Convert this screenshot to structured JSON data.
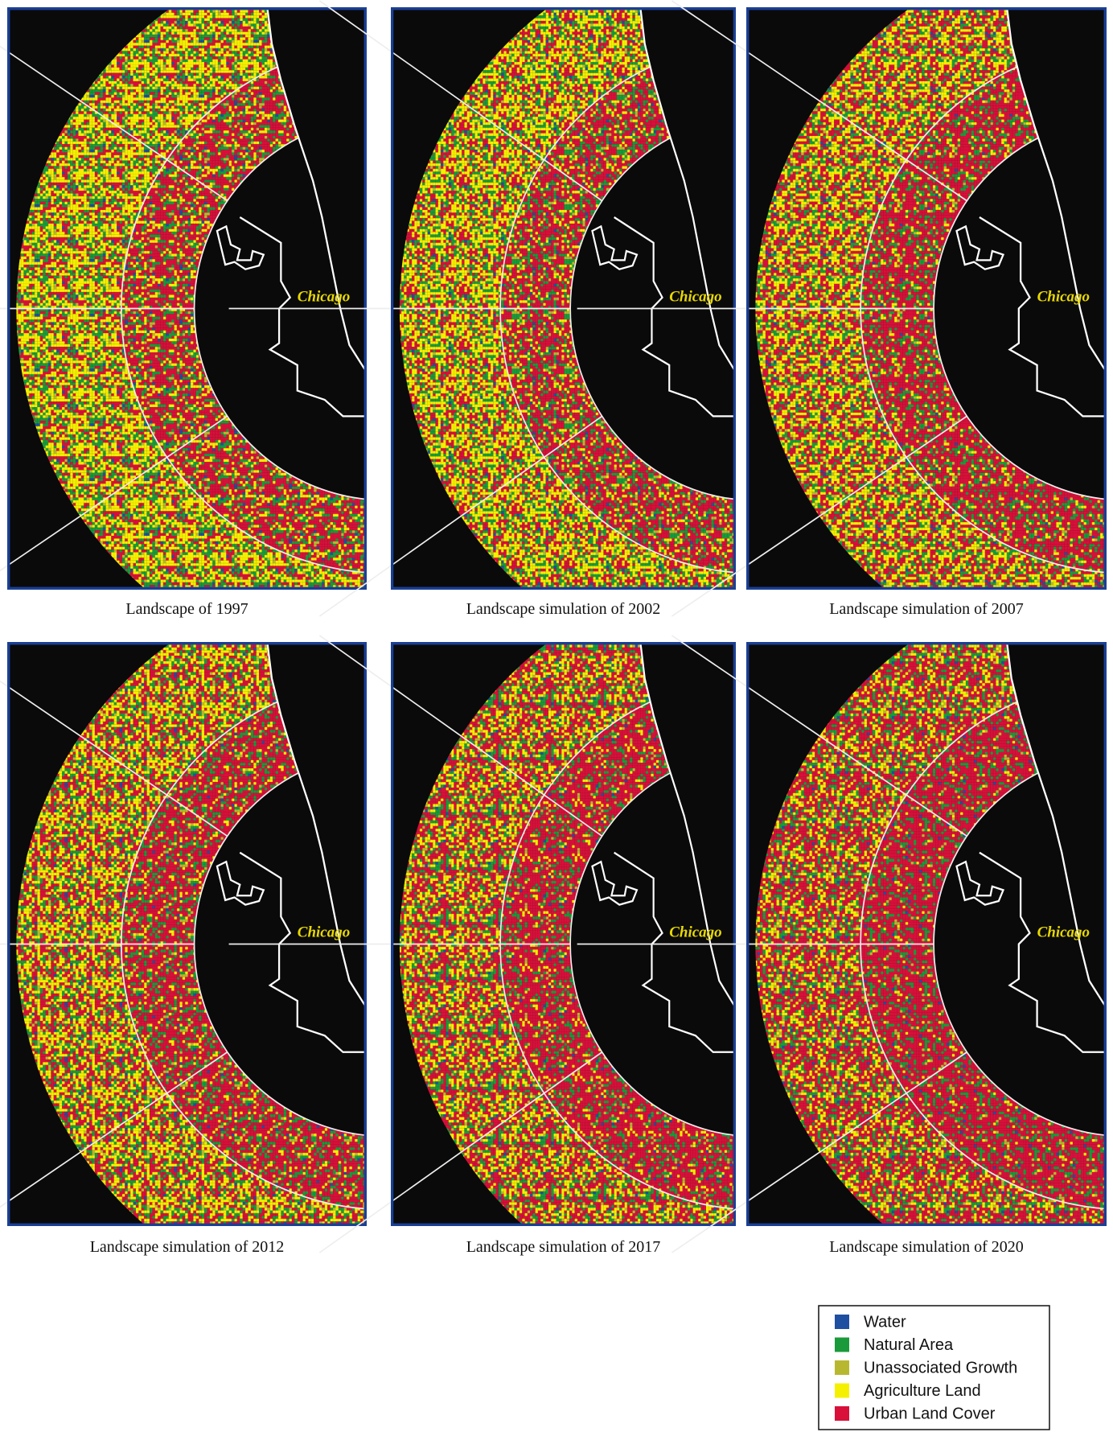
{
  "panels": [
    {
      "caption": "Landscape of 1997",
      "city_label": "Chicago"
    },
    {
      "caption": "Landscape simulation of 2002",
      "city_label": "Chicago"
    },
    {
      "caption": "Landscape simulation of 2007",
      "city_label": "Chicago"
    },
    {
      "caption": "Landscape simulation of 2012",
      "city_label": "Chicago"
    },
    {
      "caption": "Landscape simulation of 2017",
      "city_label": "Chicago"
    },
    {
      "caption": "Landscape simulation of 2020",
      "city_label": "Chicago"
    }
  ],
  "legend": [
    {
      "label": "Water",
      "color": "#1f4fa0"
    },
    {
      "label": "Natural Area",
      "color": "#1a9a3a"
    },
    {
      "label": "Unassociated Growth",
      "color": "#b8b830"
    },
    {
      "label": "Agriculture Land",
      "color": "#f5f000"
    },
    {
      "label": "Urban Land Cover",
      "color": "#d8103a"
    }
  ]
}
